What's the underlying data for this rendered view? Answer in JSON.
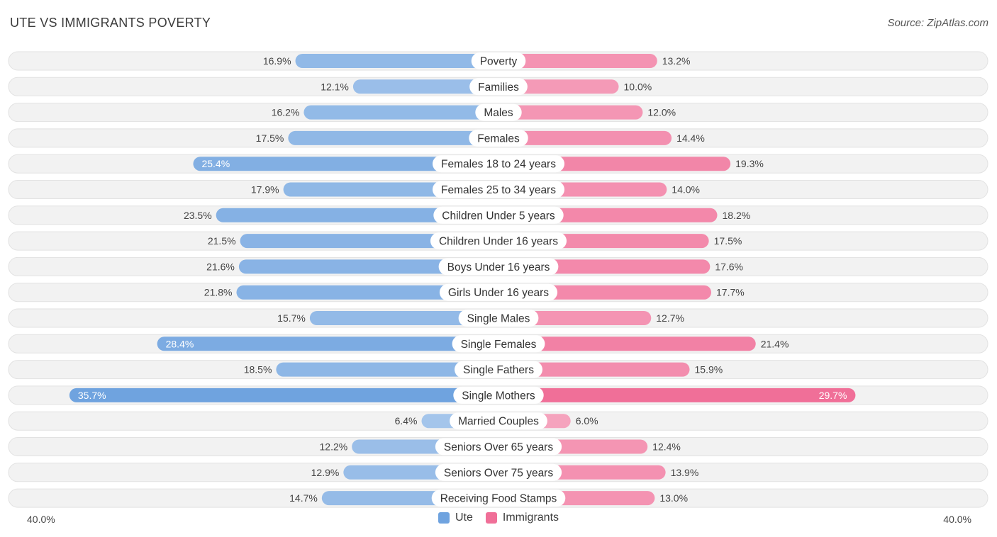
{
  "chart_data": {
    "type": "bar",
    "orientation": "horizontal-diverging",
    "title": "UTE VS IMMIGRANTS POVERTY",
    "source": "Source: ZipAtlas.com",
    "categories": [
      "Poverty",
      "Families",
      "Males",
      "Females",
      "Females 18 to 24 years",
      "Females 25 to 34 years",
      "Children Under 5 years",
      "Children Under 16 years",
      "Boys Under 16 years",
      "Girls Under 16 years",
      "Single Males",
      "Single Females",
      "Single Fathers",
      "Single Mothers",
      "Married Couples",
      "Seniors Over 65 years",
      "Seniors Over 75 years",
      "Receiving Food Stamps"
    ],
    "series": [
      {
        "name": "Ute",
        "color": "#6fa3df",
        "values": [
          16.9,
          12.1,
          16.2,
          17.5,
          25.4,
          17.9,
          23.5,
          21.5,
          21.6,
          21.8,
          15.7,
          28.4,
          18.5,
          35.7,
          6.4,
          12.2,
          12.9,
          14.7
        ]
      },
      {
        "name": "Immigrants",
        "color": "#f06f98",
        "values": [
          13.2,
          10.0,
          12.0,
          14.4,
          19.3,
          14.0,
          18.2,
          17.5,
          17.6,
          17.7,
          12.7,
          21.4,
          15.9,
          29.7,
          6.0,
          12.4,
          13.9,
          13.0
        ]
      }
    ],
    "axis_max": 40.0,
    "axis_left_label": "40.0%",
    "axis_right_label": "40.0%",
    "value_suffix": "%"
  }
}
